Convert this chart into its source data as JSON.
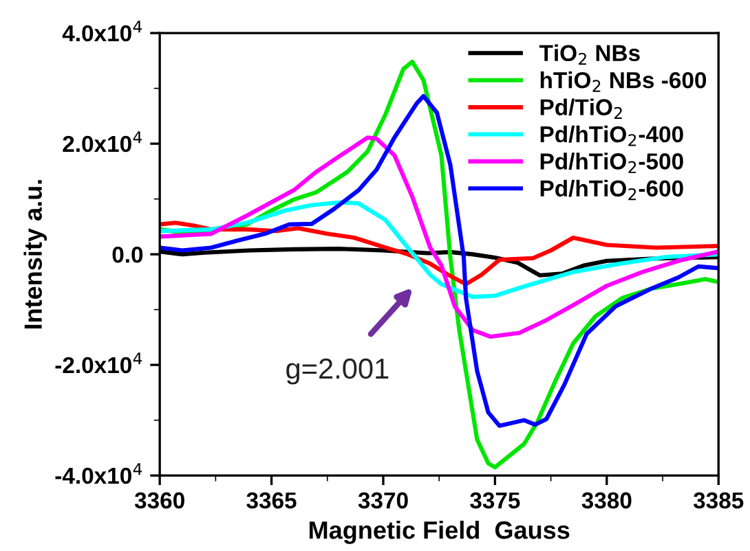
{
  "chart_data": {
    "type": "line",
    "xlabel": "Magnetic Field  Gauss",
    "ylabel": "Intensity a.u.",
    "xlim": [
      3360,
      3385
    ],
    "xticks": [
      3360,
      3365,
      3370,
      3375,
      3380,
      3385
    ],
    "ylim": [
      -40000,
      40000
    ],
    "yticks": [
      {
        "value": -40000,
        "label": "-4.0x10$^{4}$"
      },
      {
        "value": -20000,
        "label": "-2.0x10$^{4}$"
      },
      {
        "value": 0,
        "label": "0.0"
      },
      {
        "value": 20000,
        "label": "2.0x10$^{4}$"
      },
      {
        "value": 40000,
        "label": "4.0x10$^{4}$"
      }
    ],
    "grid": false,
    "legend": "top right",
    "marker": "none",
    "line_style": "solid",
    "annotations": [
      "g=2.001"
    ],
    "series": [
      {
        "name": "TiO$_{2}$ NBs",
        "color": "#000000",
        "x": [
          3360,
          3361,
          3362,
          3364,
          3366,
          3368,
          3370,
          3372,
          3373,
          3374,
          3375,
          3376,
          3377,
          3378,
          3379,
          3380,
          3382,
          3385
        ],
        "values": [
          500,
          0,
          300,
          700,
          900,
          1000,
          700,
          200,
          400,
          0,
          -600,
          -1500,
          -3800,
          -3500,
          -2000,
          -1200,
          -800,
          -500
        ]
      },
      {
        "name": "hTiO$_{2}$ NBs -600",
        "color": "#00e600",
        "x": [
          3360.0,
          3361.5,
          3362.7,
          3363.9,
          3365,
          3366,
          3367,
          3368.4,
          3369.3,
          3370.1,
          3370.9,
          3371.3,
          3371.8,
          3372.6,
          3373,
          3373.4,
          3374.2,
          3374.7,
          3375.0,
          3376.3,
          3376.9,
          3377.7,
          3378.5,
          3379.5,
          3380.7,
          3382,
          3383.2,
          3384.4,
          3385
        ],
        "values": [
          4500,
          3700,
          4500,
          5400,
          7900,
          9900,
          11200,
          14900,
          18600,
          25300,
          33500,
          34800,
          31500,
          17900,
          -500,
          -13700,
          -33500,
          -37800,
          -38500,
          -34300,
          -30300,
          -22900,
          -16100,
          -11200,
          -7900,
          -6200,
          -5400,
          -4500,
          -5000
        ]
      },
      {
        "name": "Pd/TiO$_{2}$",
        "color": "#ff0000",
        "x": [
          3360.0,
          3360.7,
          3361.5,
          3362.3,
          3363.9,
          3365.2,
          3366.2,
          3367.5,
          3368.7,
          3370.1,
          3371.1,
          3372.1,
          3372.9,
          3373.7,
          3374.4,
          3375.2,
          3376.7,
          3377.5,
          3378.5,
          3380,
          3382.2,
          3385
        ],
        "values": [
          5400,
          5700,
          5200,
          4500,
          4500,
          4200,
          4700,
          3700,
          3000,
          1200,
          0,
          -1700,
          -3700,
          -5400,
          -3700,
          -1000,
          -700,
          700,
          3000,
          1700,
          1200,
          1500
        ]
      },
      {
        "name": "Pd/hTiO$_{2}$-400",
        "color": "#00ffff",
        "x": [
          3360.0,
          3362.3,
          3363.9,
          3365.6,
          3366.8,
          3368.1,
          3368.9,
          3370.1,
          3371.1,
          3372.1,
          3372.6,
          3374,
          3375,
          3376.4,
          3378.5,
          3380.6,
          3382.6,
          3385
        ],
        "values": [
          4200,
          4500,
          5700,
          7900,
          8900,
          9400,
          9200,
          6200,
          1200,
          -3700,
          -5400,
          -7700,
          -7500,
          -5700,
          -3200,
          -1700,
          -500,
          0
        ]
      },
      {
        "name": "Pd/hTiO$_{2}$-500",
        "color": "#ff00ff",
        "x": [
          3360.0,
          3362.3,
          3363.9,
          3366,
          3367,
          3368.1,
          3369.3,
          3369.7,
          3370.5,
          3371.3,
          3372.1,
          3372.6,
          3373.2,
          3374,
          3374.8,
          3376.1,
          3377.3,
          3378.5,
          3380,
          3381.6,
          3383.2,
          3385
        ],
        "values": [
          3200,
          3700,
          7000,
          11600,
          14900,
          17900,
          21100,
          20900,
          17900,
          10400,
          1200,
          -2000,
          -9400,
          -13700,
          -14900,
          -14200,
          -11900,
          -9200,
          -5700,
          -3200,
          -1200,
          500
        ]
      },
      {
        "name": "Pd/hTiO$_{2}$-600",
        "color": "#0000ff",
        "x": [
          3360.0,
          3361,
          3362.3,
          3363.5,
          3364.7,
          3365.8,
          3366.8,
          3367.8,
          3368.9,
          3369.7,
          3370.5,
          3371.5,
          3371.8,
          3372.4,
          3373,
          3373.6,
          3373.7,
          3374.2,
          3374.7,
          3375.2,
          3376.3,
          3376.8,
          3377.3,
          3378.1,
          3379.1,
          3380.4,
          3382,
          3383.2,
          3384.1,
          3385
        ],
        "values": [
          1200,
          700,
          1200,
          2500,
          3700,
          5400,
          5500,
          8200,
          11600,
          15300,
          21100,
          27300,
          28600,
          25600,
          16200,
          -500,
          -7900,
          -21100,
          -28600,
          -31000,
          -30000,
          -30800,
          -29800,
          -23600,
          -14400,
          -9400,
          -6200,
          -4200,
          -2200,
          -2500
        ]
      }
    ]
  }
}
